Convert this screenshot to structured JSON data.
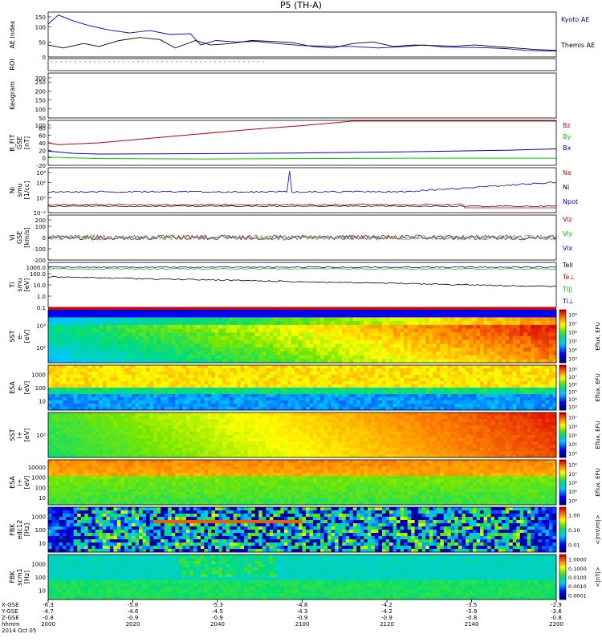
{
  "title": "P5 (TH-A)",
  "date_label": "2014 Oct 05",
  "chart_data": [
    {
      "type": "line",
      "panel": "ae",
      "ylabel": "AE Index",
      "ylim": [
        0,
        150
      ],
      "yticks": [
        "0",
        "50",
        "100",
        "150"
      ],
      "series": [
        {
          "name": "Kyoto AE",
          "color": "#0000cc",
          "x": [
            0,
            0.02,
            0.05,
            0.08,
            0.12,
            0.16,
            0.2,
            0.24,
            0.28,
            0.3,
            0.33,
            0.37,
            0.41,
            0.45,
            0.5,
            0.55,
            0.6,
            0.65,
            0.7,
            0.74,
            0.78,
            0.82,
            0.86,
            0.9,
            0.94,
            1.0
          ],
          "values": [
            110,
            140,
            120,
            105,
            90,
            80,
            88,
            75,
            78,
            40,
            55,
            50,
            52,
            45,
            38,
            36,
            35,
            30,
            35,
            40,
            33,
            32,
            31,
            28,
            22,
            20
          ]
        },
        {
          "name": "Themis AE",
          "color": "#000000",
          "x": [
            0,
            0.03,
            0.07,
            0.1,
            0.14,
            0.18,
            0.22,
            0.25,
            0.29,
            0.32,
            0.36,
            0.4,
            0.44,
            0.48,
            0.52,
            0.56,
            0.6,
            0.64,
            0.68,
            0.72,
            0.76,
            0.8,
            0.84,
            0.88,
            0.92,
            0.96,
            1.0
          ],
          "values": [
            40,
            30,
            45,
            35,
            55,
            65,
            58,
            30,
            55,
            40,
            45,
            55,
            52,
            48,
            35,
            30,
            45,
            50,
            35,
            40,
            38,
            36,
            40,
            35,
            30,
            25,
            22
          ]
        }
      ]
    },
    {
      "type": "scatter",
      "panel": "roi",
      "ylabel": "ROI",
      "ylim": [
        0,
        1
      ],
      "yticks": []
    },
    {
      "type": "line",
      "panel": "kilogram",
      "ylabel": "Keogram",
      "ylim": [
        0,
        300
      ],
      "yticks": [
        "50",
        "100",
        "150",
        "200",
        "250",
        "300"
      ]
    },
    {
      "type": "line",
      "panel": "bfield",
      "ylabel": "B_FIT\nGSE\n[nT]",
      "ylim": [
        -20,
        100
      ],
      "yticks": [
        "-20",
        "0",
        "20",
        "40",
        "60",
        "80",
        "100"
      ],
      "series": [
        {
          "name": "Bz",
          "color": "#cc0000",
          "x": [
            0,
            0.02,
            0.1,
            0.2,
            0.3,
            0.4,
            0.5,
            0.55,
            0.6,
            1.0
          ],
          "values": [
            40,
            35,
            40,
            52,
            64,
            76,
            86,
            92,
            98,
            98
          ]
        },
        {
          "name": "By",
          "color": "#00cc00",
          "x": [
            0,
            0.1,
            0.3,
            0.5,
            0.7,
            0.9,
            1.0
          ],
          "values": [
            2,
            -2,
            -3,
            -2,
            -1,
            -1,
            -1
          ]
        },
        {
          "name": "Bx",
          "color": "#0000cc",
          "x": [
            0,
            0.05,
            0.1,
            0.3,
            0.5,
            0.7,
            0.9,
            1.0
          ],
          "values": [
            18,
            12,
            10,
            11,
            13,
            16,
            20,
            24
          ]
        }
      ]
    },
    {
      "type": "line",
      "panel": "density",
      "ylabel": "Ni\nsmu\n[1/cc]",
      "ylim_log": [
        -2,
        5
      ],
      "yticks": [
        "10⁻²",
        "10⁰",
        "10²",
        "10⁴"
      ],
      "series": [
        {
          "name": "Ne",
          "color": "#cc0000"
        },
        {
          "name": "Ni",
          "color": "#000000"
        },
        {
          "name": "Npot",
          "color": "#0000cc"
        }
      ]
    },
    {
      "type": "line",
      "panel": "velocity",
      "ylabel": "Vi\nGSE\n[km/s]",
      "ylim": [
        -300,
        300
      ],
      "yticks": [
        "-200",
        "-100",
        "0",
        "100",
        "200"
      ],
      "series": [
        {
          "name": "Viz",
          "color": "#cc0000"
        },
        {
          "name": "Viy",
          "color": "#00cc00"
        },
        {
          "name": "Vix",
          "color": "#0000cc"
        }
      ]
    },
    {
      "type": "line",
      "panel": "temperature",
      "ylabel": "Ti\nsmu\n[eV]",
      "ylim_log": [
        -1,
        3
      ],
      "yticks": [
        "0.1",
        "1.0",
        "10.0",
        "100.0",
        "1000.0"
      ],
      "series": [
        {
          "name": "Tell",
          "color": "#000000"
        },
        {
          "name": "Te⊥",
          "color": "#cc0000"
        },
        {
          "name": "Ti||",
          "color": "#00cc00"
        },
        {
          "name": "Ti⊥",
          "color": "#0000cc"
        }
      ]
    },
    {
      "type": "heatmap",
      "panel": "sst-e",
      "ylabel": "SST\ne-\n[eV]",
      "yticks": [
        "10²",
        "10³"
      ],
      "colorbar": {
        "label": "Eflux, EFU",
        "ticks": [
          "10³",
          "10⁴",
          "10⁵",
          "10⁶",
          "10⁷",
          "10⁸"
        ]
      }
    },
    {
      "type": "heatmap",
      "panel": "esa-e",
      "ylabel": "ESA\ne-\n[eV]",
      "yticks": [
        "10",
        "100",
        "1000"
      ],
      "colorbar": {
        "label": "Eflux, EFU",
        "ticks": [
          "10³",
          "10⁴",
          "10⁵",
          "10⁶",
          "10⁷",
          "10⁸"
        ]
      }
    },
    {
      "type": "heatmap",
      "panel": "sst-i",
      "ylabel": "SST\ni+\n[eV]",
      "yticks": [
        "10⁵"
      ],
      "colorbar": {
        "label": "Eflux, EFU",
        "ticks": [
          "10³",
          "10⁴",
          "10⁵",
          "10⁶",
          "10⁷"
        ]
      }
    },
    {
      "type": "heatmap",
      "panel": "esa-i",
      "ylabel": "ESA\ni+\n[eV]",
      "yticks": [
        "10",
        "100",
        "1000",
        "10000"
      ],
      "colorbar": {
        "label": "Eflux, EFU",
        "ticks": [
          "10⁴",
          "10⁵",
          "10⁶",
          "10⁷",
          "10⁸"
        ]
      }
    },
    {
      "type": "heatmap",
      "panel": "fbk-e",
      "ylabel": "FBK\nedc12\n[Hz]",
      "yticks": [
        "10",
        "100",
        "1000"
      ],
      "colorbar": {
        "label": "<|mV/m|>",
        "ticks": [
          "0.01",
          "0.10",
          "1.00"
        ]
      }
    },
    {
      "type": "heatmap",
      "panel": "fbk-b",
      "ylabel": "FBK\nscm1\n[Hz]",
      "yticks": [
        "10",
        "100",
        "1000"
      ],
      "colorbar": {
        "label": "<|nT|>",
        "ticks": [
          "0.0001",
          "0.0010",
          "0.0100",
          "0.1000",
          "1.0000"
        ]
      }
    }
  ],
  "xaxis": {
    "row_labels": [
      "X-GSE",
      "Y-GSE",
      "Z-GSE",
      "hhmm"
    ],
    "ticks": [
      {
        "t": "2000",
        "x": "-6.3",
        "y": "-4.7",
        "z": "-0.8"
      },
      {
        "t": "2020",
        "x": "-5.8",
        "y": "-4.6",
        "z": "-0.9"
      },
      {
        "t": "2040",
        "x": "-5.3",
        "y": "-4.5",
        "z": "-0.9"
      },
      {
        "t": "2100",
        "x": "-4.8",
        "y": "-4.3",
        "z": "-0.9"
      },
      {
        "t": "2120",
        "x": "-4.2",
        "y": "-4.2",
        "z": "-0.9"
      },
      {
        "t": "2140",
        "x": "-3.5",
        "y": "-3.9",
        "z": "-0.8"
      },
      {
        "t": "2200",
        "x": "-2.9",
        "y": "-3.6",
        "z": "-0.8"
      }
    ]
  }
}
